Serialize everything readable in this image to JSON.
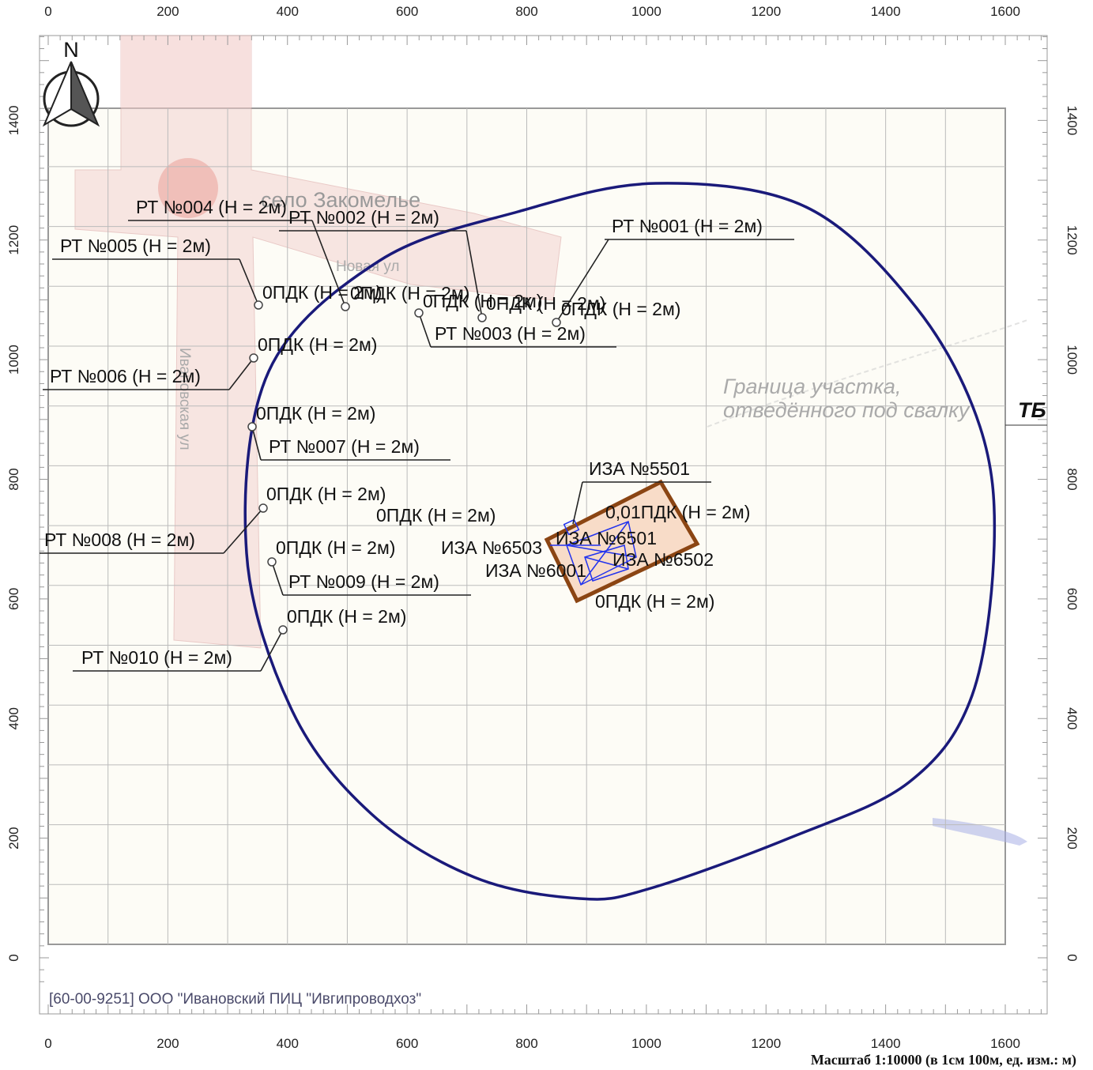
{
  "axes": {
    "x_ticks": [
      0,
      200,
      400,
      600,
      800,
      1000,
      1200,
      1400,
      1600
    ],
    "y_ticks": [
      0,
      200,
      400,
      600,
      800,
      1000,
      1200,
      1400
    ]
  },
  "compass": "N",
  "places": [
    "село Закомелье",
    "Новая ул",
    "Ивановская ул"
  ],
  "boundary_label": {
    "line1": "Граница участка,",
    "line2": "отведённого под свалку",
    "suffix": "ТБ"
  },
  "receptors": [
    "РТ №001 (Н = 2м)",
    "РТ №002 (Н = 2м)",
    "РТ №003 (Н = 2м)",
    "РТ №004 (Н = 2м)",
    "РТ №005 (Н = 2м)",
    "РТ №006 (Н = 2м)",
    "РТ №007 (Н = 2м)",
    "РТ №008 (Н = 2м)",
    "РТ №009 (Н = 2м)",
    "РТ №010 (Н = 2м)"
  ],
  "isolines": [
    "0ПДК (Н = 2м)",
    "0ПДК (Н = 2м)",
    "0ПДК (Н = 2м)",
    "0ПДК (Н = 2м)",
    "0ПДК (Н = 2м)",
    "0ПДК (Н = 2м)",
    "0ПДК (Н = 2м)",
    "0ПДК (Н = 2м)",
    "0ПДК (Н = 2м)",
    "0ПДК (Н = 2м)",
    "0ПДК (Н = 2м)",
    "0ПДК (Н = 2м)",
    "0,01ПДК (Н = 2м)"
  ],
  "sources": [
    "ИЗА №5501",
    "ИЗА №6503",
    "ИЗА №6501",
    "ИЗА №6502",
    "ИЗА №6001"
  ],
  "footer": {
    "org": "[60-00-9251] ООО \"Ивановский ПИЦ \"Ивгипроводхоз\"",
    "scale": "Масштаб 1:10000 (в 1см 100м, ед. изм.: м)"
  }
}
